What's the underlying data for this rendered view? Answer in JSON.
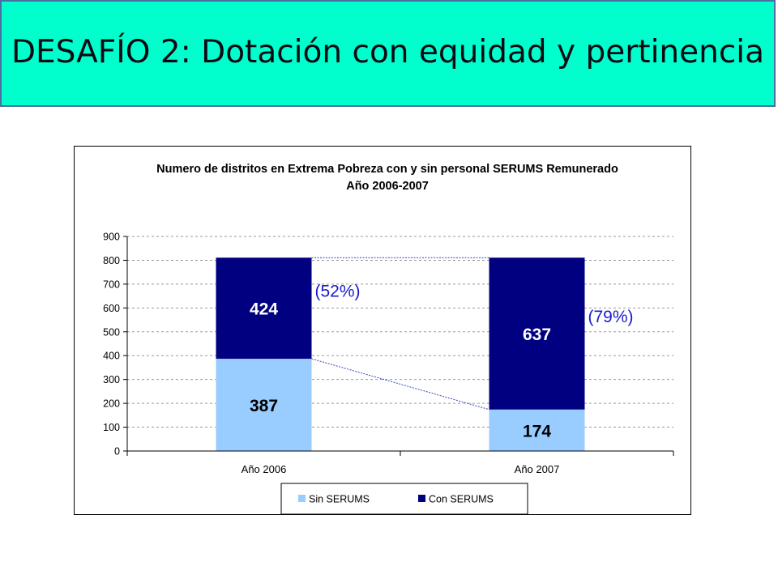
{
  "slide": {
    "title": "DESAFÍO 2: Dotación con equidad y pertinencia"
  },
  "chart_data": {
    "type": "bar",
    "stacked": true,
    "title": "Numero de distritos en Extrema Pobreza con y sin personal SERUMS Remunerado",
    "subtitle": "Año 2006-2007",
    "categories": [
      "Año 2006",
      "Año 2007"
    ],
    "series": [
      {
        "name": "Sin SERUMS",
        "values": [
          387,
          174
        ],
        "color": "#99ccff",
        "labels": [
          "387",
          "174"
        ]
      },
      {
        "name": "Con SERUMS",
        "values": [
          424,
          637
        ],
        "color": "#000080",
        "labels": [
          "424",
          "637"
        ]
      }
    ],
    "annotations": [
      "(52%)",
      "(79%)"
    ],
    "annotation_color": "#1a1acc",
    "ylim": [
      0,
      900
    ],
    "yticks": [
      "0",
      "100",
      "200",
      "300",
      "400",
      "500",
      "600",
      "700",
      "800",
      "900"
    ],
    "grid": true,
    "legend_position": "bottom"
  }
}
